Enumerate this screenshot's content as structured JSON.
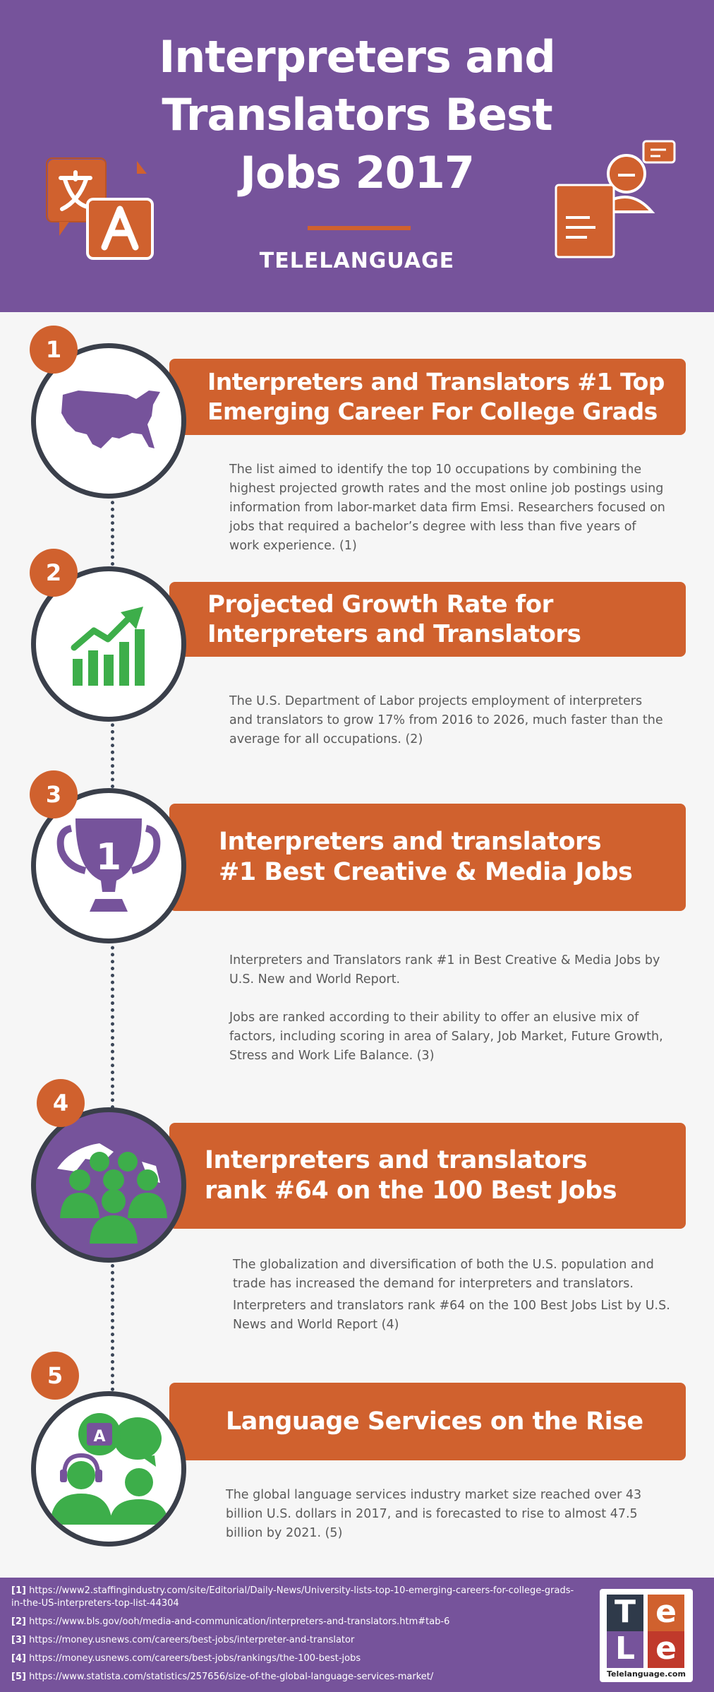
{
  "header": {
    "title_lines": [
      "Interpreters and",
      "Translators Best",
      "Jobs 2017"
    ],
    "brand": "TELELANGUAGE"
  },
  "sections": [
    {
      "number": "1",
      "heading_lines": [
        "Interpreters and Translators #1 Top",
        "Emerging Career For College Grads"
      ],
      "paragraphs": [
        "The list aimed to identify the top 10 occupations by combining the highest projected growth rates and the most online job postings using information from labor-market data firm Emsi. Researchers focused on jobs that required a bachelor’s degree with less than five years of work experience. (1)"
      ],
      "icon": "usa-map-icon"
    },
    {
      "number": "2",
      "heading_lines": [
        "Projected Growth Rate for",
        "Interpreters and Translators"
      ],
      "paragraphs": [
        "The U.S. Department of Labor projects employment of interpreters and translators to grow 17% from 2016 to 2026, much faster than the average for all occupations. (2)"
      ],
      "icon": "growth-chart-icon"
    },
    {
      "number": "3",
      "heading_lines": [
        "Interpreters and translators",
        "#1 Best Creative & Media Jobs"
      ],
      "trophy_label": "1",
      "paragraphs": [
        "Interpreters and Translators rank #1 in Best Creative & Media Jobs by U.S. New and World Report.",
        "Jobs are ranked according to their ability to offer an elusive mix of factors, including scoring in area of Salary, Job Market, Future Growth, Stress and Work Life Balance. (3)"
      ],
      "icon": "trophy-icon"
    },
    {
      "number": "4",
      "heading_lines": [
        "Interpreters and translators",
        "rank #64  on the 100 Best Jobs"
      ],
      "paragraphs": [
        "The globalization and diversification of both the U.S. population and trade has increased the demand for interpreters and translators.",
        "Interpreters and translators rank #64  on the 100 Best Jobs List by U.S. News and World Report (4)"
      ],
      "icon": "globe-people-icon"
    },
    {
      "number": "5",
      "heading_lines": [
        "Language Services on the Rise"
      ],
      "paragraphs": [
        "The global language services industry market size reached over 43 billion U.S. dollars in 2017, and is forecasted to rise to almost 47.5 billion by 2021.  (5)"
      ],
      "icon": "interpreter-headset-icon"
    }
  ],
  "footer": {
    "references": [
      {
        "tag": "[1]",
        "url": "https://www2.staffingindustry.com/site/Editorial/Daily-News/University-lists-top-10-emerging-careers-for-college-grads-in-the-US-interpreters-top-list-44304"
      },
      {
        "tag": "[2]",
        "url": "https://www.bls.gov/ooh/media-and-communication/interpreters-and-translators.htm#tab-6"
      },
      {
        "tag": "[3]",
        "url": "https://money.usnews.com/careers/best-jobs/interpreter-and-translator"
      },
      {
        "tag": "[4]",
        "url": "https://money.usnews.com/careers/best-jobs/rankings/the-100-best-jobs"
      },
      {
        "tag": "[5]",
        "url": "https://www.statista.com/statistics/257656/size-of-the-global-language-services-market/"
      }
    ],
    "logo_letters": [
      "T",
      "e",
      "L",
      "e"
    ],
    "logo_site": "Telelanguage.com"
  },
  "colors": {
    "purple": "#76539b",
    "orange": "#d0612e",
    "green": "#3dae4a",
    "dark": "#3a3f4a"
  }
}
